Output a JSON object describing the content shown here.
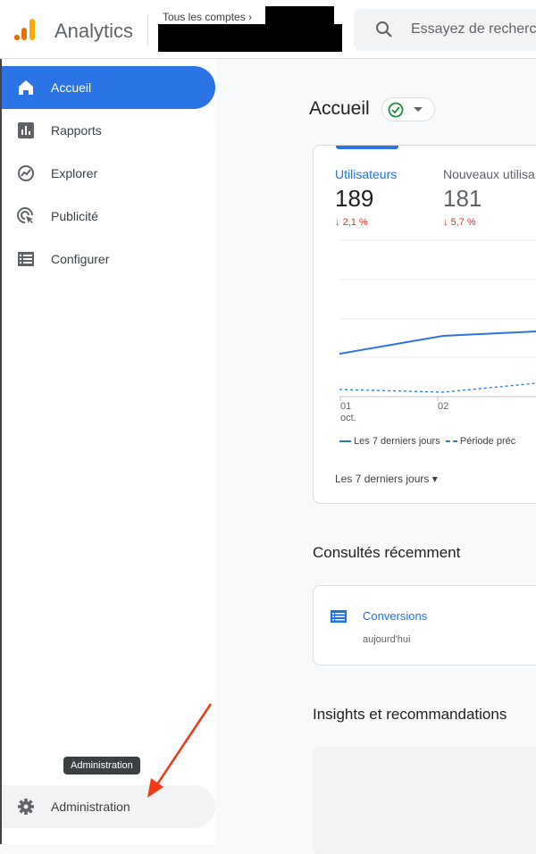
{
  "header": {
    "app_name": "Analytics",
    "breadcrumb": "Tous les comptes",
    "search_placeholder": "Essayez de recherc"
  },
  "sidebar": {
    "items": [
      {
        "label": "Accueil",
        "icon": "home-icon",
        "active": true
      },
      {
        "label": "Rapports",
        "icon": "bar-chart-icon"
      },
      {
        "label": "Explorer",
        "icon": "explore-icon"
      },
      {
        "label": "Publicité",
        "icon": "ads-click-icon"
      },
      {
        "label": "Configurer",
        "icon": "list-icon"
      }
    ],
    "admin": {
      "label": "Administration",
      "icon": "gear-icon",
      "tooltip": "Administration"
    }
  },
  "main": {
    "title": "Accueil",
    "metrics": [
      {
        "label": "Utilisateurs",
        "value": "189",
        "delta": "2,1 %",
        "direction": "down"
      },
      {
        "label": "Nouveaux utilisa",
        "value": "181",
        "delta": "5,7 %",
        "direction": "down"
      }
    ],
    "chart": {
      "x_ticks": [
        {
          "day": "01",
          "month": "oct."
        },
        {
          "day": "02",
          "month": ""
        }
      ],
      "legend": [
        "Les 7 derniers jours",
        "Période préc"
      ],
      "range_label": "Les 7 derniers jours"
    },
    "recent": {
      "title": "Consultés récemment",
      "items": [
        {
          "name": "Conversions",
          "when": "aujourd'hui"
        }
      ]
    },
    "insights": {
      "title": "Insights et recommandations"
    }
  },
  "colors": {
    "accent": "#2b74e6",
    "negative": "#d93025",
    "annotation_arrow": "#f03a17"
  }
}
